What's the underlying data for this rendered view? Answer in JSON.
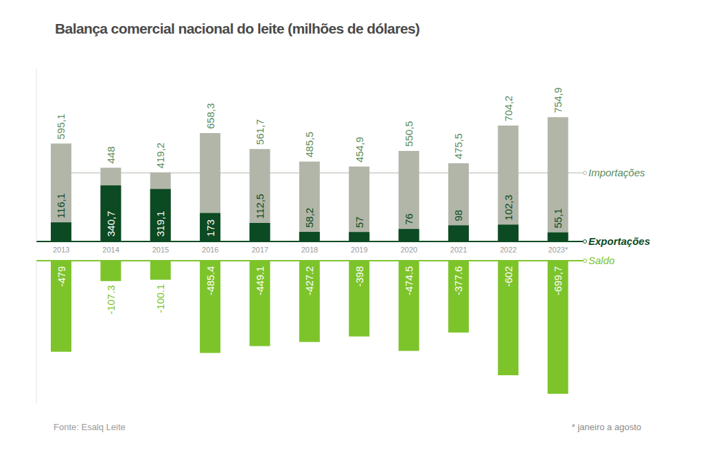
{
  "chart_data": [
    {
      "type": "bar",
      "title": "Balança comercial nacional do leite (milhões de dólares)",
      "categories": [
        "2013",
        "2014",
        "2015",
        "2016",
        "2017",
        "2018",
        "2019",
        "2020",
        "2021",
        "2022",
        "2023*"
      ],
      "series": [
        {
          "name": "Importações",
          "color": "#b1b6a8",
          "values": [
            595.1,
            448,
            419.2,
            658.3,
            561.7,
            485.5,
            454.9,
            550.5,
            475.5,
            704.2,
            754.9
          ],
          "value_labels": [
            "595,1",
            "448",
            "419,2",
            "658,3",
            "561,7",
            "485,5",
            "454,9",
            "550,5",
            "475,5",
            "704,2",
            "754,9"
          ]
        },
        {
          "name": "Exportações",
          "color": "#0b4a22",
          "values": [
            116.1,
            340.7,
            319.1,
            173,
            112.5,
            58.2,
            57,
            76,
            98,
            102.3,
            55.1
          ],
          "value_labels": [
            "116,1",
            "340,7",
            "319,1",
            "173",
            "112,5",
            "58,2",
            "57",
            "76",
            "98",
            "102,3",
            "55,1"
          ]
        }
      ],
      "ylim": [
        0,
        1050
      ],
      "yticks": [
        0
      ],
      "grid": false,
      "tick_labels": "x",
      "data_labels": true,
      "legend": "right",
      "annotations": [
        "Fonte: Esalq Leite",
        "* janeiro a agosto"
      ]
    },
    {
      "type": "bar",
      "categories": [
        "2013",
        "2014",
        "2015",
        "2016",
        "2017",
        "2018",
        "2019",
        "2020",
        "2021",
        "2022",
        "2023*"
      ],
      "series": [
        {
          "name": "Saldo",
          "color": "#7dc42b",
          "values": [
            -479,
            -107.3,
            -100.1,
            -485.4,
            -449.1,
            -427.2,
            -398,
            -474.5,
            -377.6,
            -602,
            -699.7
          ],
          "value_labels": [
            "-479",
            "-107.3",
            "-100.1",
            "-485.4",
            "-449.1",
            "-427.2",
            "-398",
            "-474.5",
            "-377.6",
            "-602",
            "-699,7"
          ]
        }
      ],
      "ylim": [
        -750,
        0
      ],
      "yticks": [
        0
      ],
      "grid": false,
      "tick_labels": false,
      "data_labels": true
    }
  ]
}
